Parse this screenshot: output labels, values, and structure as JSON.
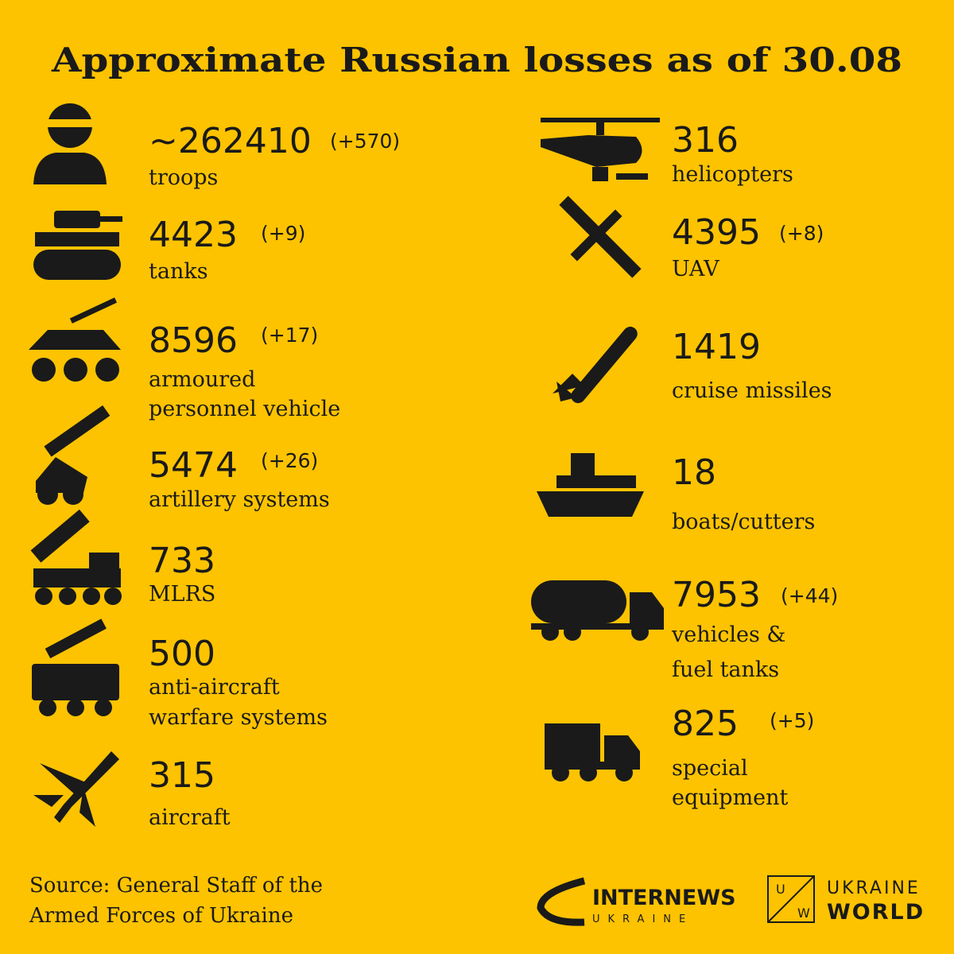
{
  "title": "Approximate Russian losses as of 30.08",
  "items": [
    {
      "value": "~262410",
      "change": "(+570)",
      "label": [
        "troops"
      ]
    },
    {
      "value": "4423",
      "change": "(+9)",
      "label": [
        "tanks"
      ]
    },
    {
      "value": "8596",
      "change": "(+17)",
      "label": [
        "armoured",
        "personnel vehicle"
      ]
    },
    {
      "value": "5474",
      "change": "(+26)",
      "label": [
        "artillery systems"
      ]
    },
    {
      "value": "733",
      "label": [
        "MLRS"
      ]
    },
    {
      "value": "500",
      "label": [
        "anti-aircraft",
        "warfare systems"
      ]
    },
    {
      "value": "315",
      "label": [
        "aircraft"
      ]
    },
    {
      "value": "316",
      "label": [
        "helicopters"
      ]
    },
    {
      "value": "4395",
      "change": "(+8)",
      "label": [
        "UAV"
      ]
    },
    {
      "value": "1419",
      "label": [
        "cruise missiles"
      ]
    },
    {
      "value": "18",
      "label": [
        "boats/cutters"
      ]
    },
    {
      "value": "7953",
      "change": "(+44)",
      "label": [
        "vehicles &",
        "fuel tanks"
      ]
    },
    {
      "value": "825",
      "change": "(+5)",
      "label": [
        "special",
        "equipment"
      ]
    }
  ],
  "source": [
    "Source: General Staff of the",
    "Armed Forces of Ukraine"
  ],
  "logos": {
    "internews": [
      "INTERNEWS",
      "UKRAINE"
    ],
    "ukraine_world": {
      "letters": [
        "U",
        "W"
      ],
      "text": [
        "UKRAINE",
        "WORLD"
      ]
    }
  }
}
